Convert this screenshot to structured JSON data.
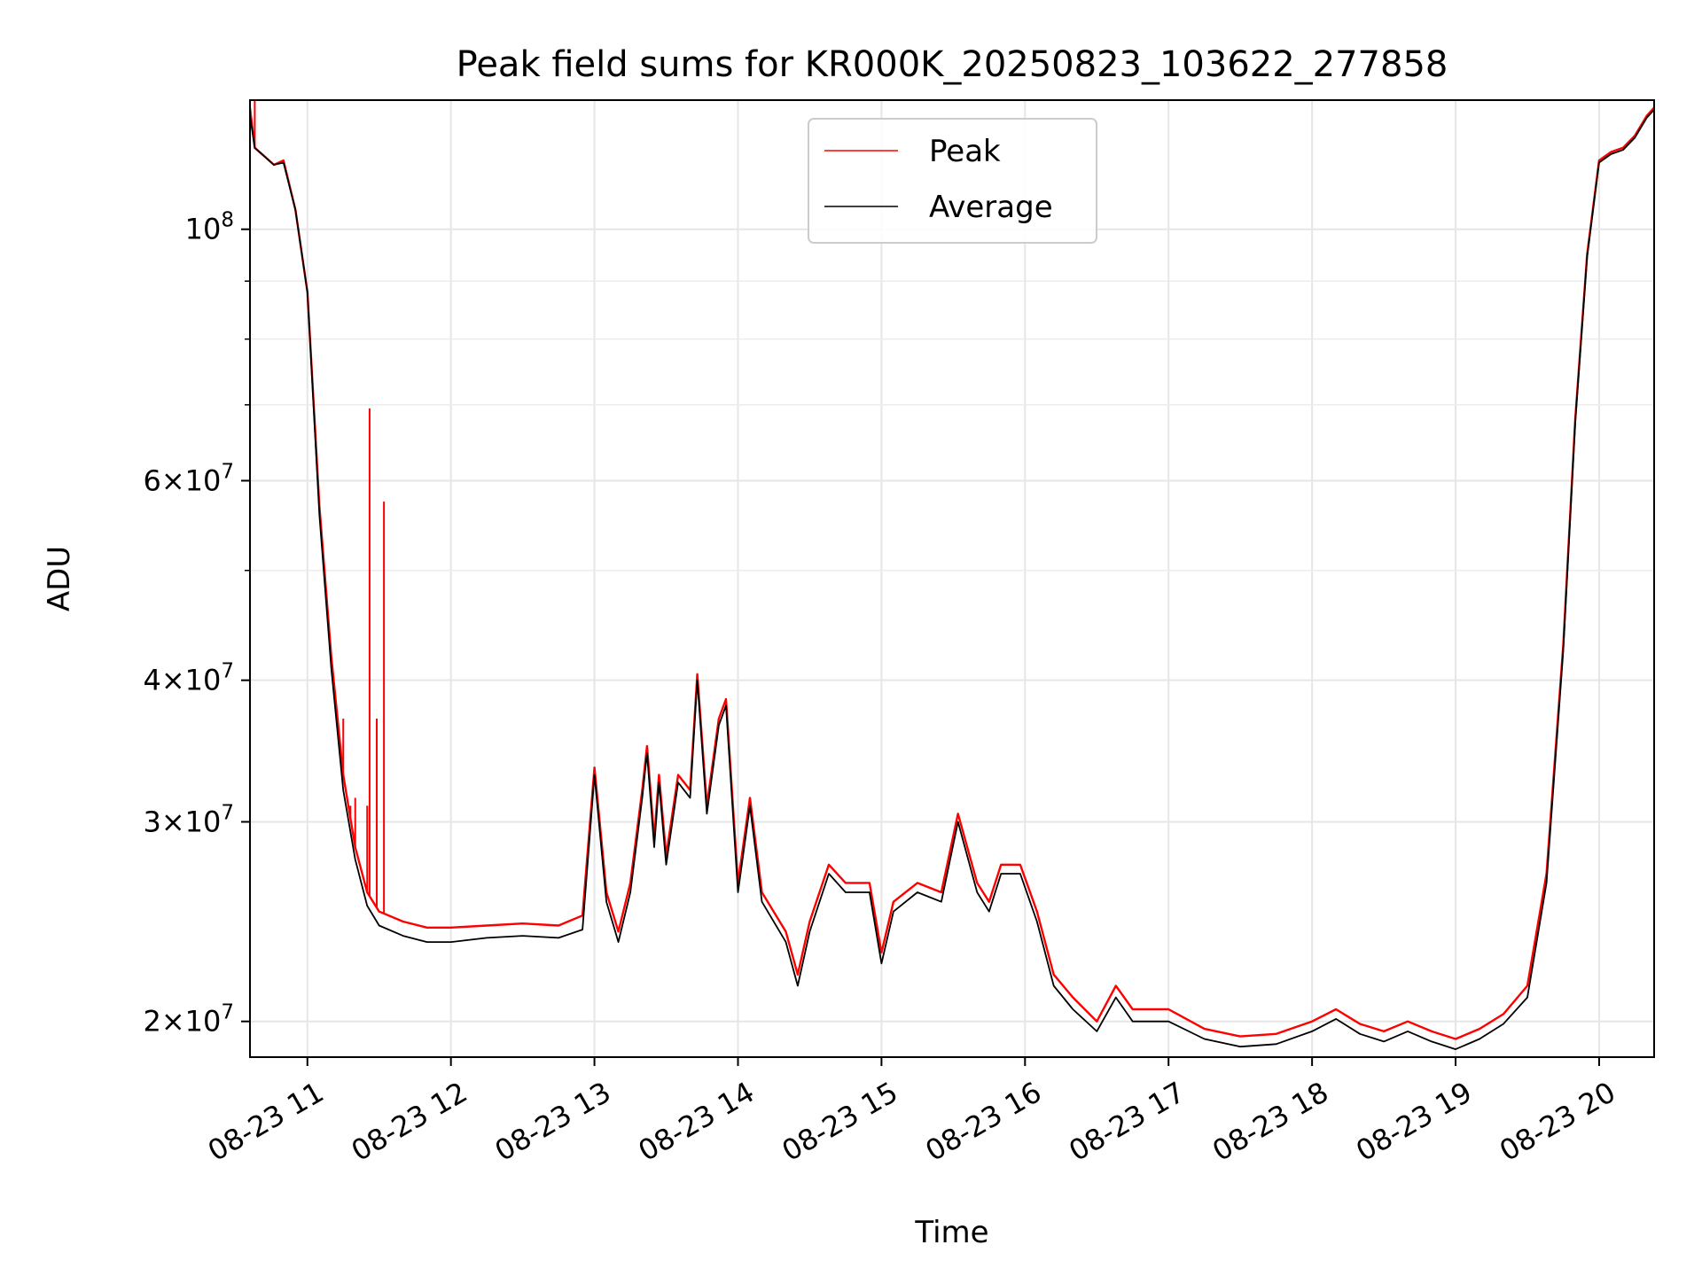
{
  "chart_data": {
    "type": "line",
    "title": "Peak field sums for KR000K_20250823_103622_277858",
    "xlabel": "Time",
    "ylabel": "ADU",
    "yscale": "log",
    "ylim": [
      18600000,
      130000000
    ],
    "xlim": [
      "2025-08-23 10:36",
      "2025-08-23 20:23"
    ],
    "x_ticks": [
      {
        "t": "2025-08-23 11:00",
        "label": "08-23 11"
      },
      {
        "t": "2025-08-23 12:00",
        "label": "08-23 12"
      },
      {
        "t": "2025-08-23 13:00",
        "label": "08-23 13"
      },
      {
        "t": "2025-08-23 14:00",
        "label": "08-23 14"
      },
      {
        "t": "2025-08-23 15:00",
        "label": "08-23 15"
      },
      {
        "t": "2025-08-23 16:00",
        "label": "08-23 16"
      },
      {
        "t": "2025-08-23 17:00",
        "label": "08-23 17"
      },
      {
        "t": "2025-08-23 18:00",
        "label": "08-23 18"
      },
      {
        "t": "2025-08-23 19:00",
        "label": "08-23 19"
      },
      {
        "t": "2025-08-23 20:00",
        "label": "08-23 20"
      }
    ],
    "y_major_ticks": [
      {
        "value": 20000000,
        "mantissa": "2",
        "exp": "7"
      },
      {
        "value": 30000000,
        "mantissa": "3",
        "exp": "7"
      },
      {
        "value": 40000000,
        "mantissa": "4",
        "exp": "7"
      },
      {
        "value": 60000000,
        "mantissa": "6",
        "exp": "7"
      },
      {
        "value": 100000000,
        "mantissa": "",
        "exp": "8"
      }
    ],
    "y_minor_ticks": [
      50000000,
      70000000,
      80000000,
      90000000
    ],
    "grid": true,
    "legend_position": "upper center",
    "series": [
      {
        "name": "Peak",
        "color": "#ff0000",
        "points": [
          [
            "2025-08-23 10:36",
            128000000
          ],
          [
            "2025-08-23 10:38",
            118000000
          ],
          [
            "2025-08-23 10:42",
            116000000
          ],
          [
            "2025-08-23 10:46",
            114000000
          ],
          [
            "2025-08-23 10:50",
            115000000
          ],
          [
            "2025-08-23 10:55",
            104000000
          ],
          [
            "2025-08-23 11:00",
            88000000
          ],
          [
            "2025-08-23 11:05",
            57000000
          ],
          [
            "2025-08-23 11:10",
            42000000
          ],
          [
            "2025-08-23 11:15",
            33000000
          ],
          [
            "2025-08-23 11:20",
            28500000
          ],
          [
            "2025-08-23 11:25",
            26000000
          ],
          [
            "2025-08-23 11:30",
            25000000
          ],
          [
            "2025-08-23 11:40",
            24500000
          ],
          [
            "2025-08-23 11:50",
            24200000
          ],
          [
            "2025-08-23 12:00",
            24200000
          ],
          [
            "2025-08-23 12:15",
            24300000
          ],
          [
            "2025-08-23 12:30",
            24400000
          ],
          [
            "2025-08-23 12:45",
            24300000
          ],
          [
            "2025-08-23 12:55",
            24800000
          ],
          [
            "2025-08-23 13:00",
            33500000
          ],
          [
            "2025-08-23 13:05",
            26000000
          ],
          [
            "2025-08-23 13:10",
            24000000
          ],
          [
            "2025-08-23 13:15",
            26500000
          ],
          [
            "2025-08-23 13:20",
            32000000
          ],
          [
            "2025-08-23 13:22",
            35000000
          ],
          [
            "2025-08-23 13:25",
            29000000
          ],
          [
            "2025-08-23 13:27",
            33000000
          ],
          [
            "2025-08-23 13:30",
            28000000
          ],
          [
            "2025-08-23 13:35",
            33000000
          ],
          [
            "2025-08-23 13:40",
            32000000
          ],
          [
            "2025-08-23 13:43",
            40500000
          ],
          [
            "2025-08-23 13:47",
            31000000
          ],
          [
            "2025-08-23 13:52",
            37000000
          ],
          [
            "2025-08-23 13:55",
            38500000
          ],
          [
            "2025-08-23 14:00",
            26500000
          ],
          [
            "2025-08-23 14:05",
            31500000
          ],
          [
            "2025-08-23 14:10",
            26000000
          ],
          [
            "2025-08-23 14:20",
            24000000
          ],
          [
            "2025-08-23 14:25",
            22000000
          ],
          [
            "2025-08-23 14:30",
            24500000
          ],
          [
            "2025-08-23 14:38",
            27500000
          ],
          [
            "2025-08-23 14:45",
            26500000
          ],
          [
            "2025-08-23 14:55",
            26500000
          ],
          [
            "2025-08-23 15:00",
            23000000
          ],
          [
            "2025-08-23 15:05",
            25500000
          ],
          [
            "2025-08-23 15:15",
            26500000
          ],
          [
            "2025-08-23 15:25",
            26000000
          ],
          [
            "2025-08-23 15:32",
            30500000
          ],
          [
            "2025-08-23 15:40",
            26500000
          ],
          [
            "2025-08-23 15:45",
            25500000
          ],
          [
            "2025-08-23 15:50",
            27500000
          ],
          [
            "2025-08-23 15:58",
            27500000
          ],
          [
            "2025-08-23 16:05",
            25000000
          ],
          [
            "2025-08-23 16:12",
            22000000
          ],
          [
            "2025-08-23 16:20",
            21000000
          ],
          [
            "2025-08-23 16:30",
            20000000
          ],
          [
            "2025-08-23 16:38",
            21500000
          ],
          [
            "2025-08-23 16:45",
            20500000
          ],
          [
            "2025-08-23 17:00",
            20500000
          ],
          [
            "2025-08-23 17:15",
            19700000
          ],
          [
            "2025-08-23 17:30",
            19400000
          ],
          [
            "2025-08-23 17:45",
            19500000
          ],
          [
            "2025-08-23 18:00",
            20000000
          ],
          [
            "2025-08-23 18:10",
            20500000
          ],
          [
            "2025-08-23 18:20",
            19900000
          ],
          [
            "2025-08-23 18:30",
            19600000
          ],
          [
            "2025-08-23 18:40",
            20000000
          ],
          [
            "2025-08-23 18:50",
            19600000
          ],
          [
            "2025-08-23 19:00",
            19300000
          ],
          [
            "2025-08-23 19:10",
            19700000
          ],
          [
            "2025-08-23 19:20",
            20300000
          ],
          [
            "2025-08-23 19:30",
            21500000
          ],
          [
            "2025-08-23 19:38",
            27000000
          ],
          [
            "2025-08-23 19:45",
            43000000
          ],
          [
            "2025-08-23 19:50",
            68000000
          ],
          [
            "2025-08-23 19:55",
            95000000
          ],
          [
            "2025-08-23 20:00",
            115000000
          ],
          [
            "2025-08-23 20:05",
            117000000
          ],
          [
            "2025-08-23 20:10",
            118000000
          ],
          [
            "2025-08-23 20:15",
            121000000
          ],
          [
            "2025-08-23 20:20",
            126000000
          ],
          [
            "2025-08-23 20:23",
            128000000
          ]
        ],
        "spikes": [
          [
            "2025-08-23 10:38",
            130000000
          ],
          [
            "2025-08-23 11:15",
            37000000
          ],
          [
            "2025-08-23 11:18",
            31000000
          ],
          [
            "2025-08-23 11:20",
            31500000
          ],
          [
            "2025-08-23 11:25",
            31000000
          ],
          [
            "2025-08-23 11:26",
            69500000
          ],
          [
            "2025-08-23 11:29",
            37000000
          ],
          [
            "2025-08-23 11:32",
            57500000
          ]
        ]
      },
      {
        "name": "Average",
        "color": "#000000",
        "points": [
          [
            "2025-08-23 10:36",
            126000000
          ],
          [
            "2025-08-23 10:38",
            118000000
          ],
          [
            "2025-08-23 10:42",
            116000000
          ],
          [
            "2025-08-23 10:46",
            114000000
          ],
          [
            "2025-08-23 10:50",
            114500000
          ],
          [
            "2025-08-23 10:55",
            104000000
          ],
          [
            "2025-08-23 11:00",
            88000000
          ],
          [
            "2025-08-23 11:05",
            56000000
          ],
          [
            "2025-08-23 11:10",
            41000000
          ],
          [
            "2025-08-23 11:15",
            32000000
          ],
          [
            "2025-08-23 11:20",
            27800000
          ],
          [
            "2025-08-23 11:25",
            25300000
          ],
          [
            "2025-08-23 11:30",
            24300000
          ],
          [
            "2025-08-23 11:40",
            23800000
          ],
          [
            "2025-08-23 11:50",
            23500000
          ],
          [
            "2025-08-23 12:00",
            23500000
          ],
          [
            "2025-08-23 12:15",
            23700000
          ],
          [
            "2025-08-23 12:30",
            23800000
          ],
          [
            "2025-08-23 12:45",
            23700000
          ],
          [
            "2025-08-23 12:55",
            24100000
          ],
          [
            "2025-08-23 13:00",
            33000000
          ],
          [
            "2025-08-23 13:05",
            25500000
          ],
          [
            "2025-08-23 13:10",
            23500000
          ],
          [
            "2025-08-23 13:15",
            26000000
          ],
          [
            "2025-08-23 13:20",
            31500000
          ],
          [
            "2025-08-23 13:22",
            34500000
          ],
          [
            "2025-08-23 13:25",
            28500000
          ],
          [
            "2025-08-23 13:27",
            32500000
          ],
          [
            "2025-08-23 13:30",
            27500000
          ],
          [
            "2025-08-23 13:35",
            32500000
          ],
          [
            "2025-08-23 13:40",
            31500000
          ],
          [
            "2025-08-23 13:43",
            40000000
          ],
          [
            "2025-08-23 13:47",
            30500000
          ],
          [
            "2025-08-23 13:52",
            36500000
          ],
          [
            "2025-08-23 13:55",
            38000000
          ],
          [
            "2025-08-23 14:00",
            26000000
          ],
          [
            "2025-08-23 14:05",
            31000000
          ],
          [
            "2025-08-23 14:10",
            25500000
          ],
          [
            "2025-08-23 14:20",
            23500000
          ],
          [
            "2025-08-23 14:25",
            21500000
          ],
          [
            "2025-08-23 14:30",
            24000000
          ],
          [
            "2025-08-23 14:38",
            27000000
          ],
          [
            "2025-08-23 14:45",
            26000000
          ],
          [
            "2025-08-23 14:55",
            26000000
          ],
          [
            "2025-08-23 15:00",
            22500000
          ],
          [
            "2025-08-23 15:05",
            25000000
          ],
          [
            "2025-08-23 15:15",
            26000000
          ],
          [
            "2025-08-23 15:25",
            25500000
          ],
          [
            "2025-08-23 15:32",
            30000000
          ],
          [
            "2025-08-23 15:40",
            26000000
          ],
          [
            "2025-08-23 15:45",
            25000000
          ],
          [
            "2025-08-23 15:50",
            27000000
          ],
          [
            "2025-08-23 15:58",
            27000000
          ],
          [
            "2025-08-23 16:05",
            24500000
          ],
          [
            "2025-08-23 16:12",
            21500000
          ],
          [
            "2025-08-23 16:20",
            20500000
          ],
          [
            "2025-08-23 16:30",
            19600000
          ],
          [
            "2025-08-23 16:38",
            21000000
          ],
          [
            "2025-08-23 16:45",
            20000000
          ],
          [
            "2025-08-23 17:00",
            20000000
          ],
          [
            "2025-08-23 17:15",
            19300000
          ],
          [
            "2025-08-23 17:30",
            19000000
          ],
          [
            "2025-08-23 17:45",
            19100000
          ],
          [
            "2025-08-23 18:00",
            19600000
          ],
          [
            "2025-08-23 18:10",
            20100000
          ],
          [
            "2025-08-23 18:20",
            19500000
          ],
          [
            "2025-08-23 18:30",
            19200000
          ],
          [
            "2025-08-23 18:40",
            19600000
          ],
          [
            "2025-08-23 18:50",
            19200000
          ],
          [
            "2025-08-23 19:00",
            18900000
          ],
          [
            "2025-08-23 19:10",
            19300000
          ],
          [
            "2025-08-23 19:20",
            19900000
          ],
          [
            "2025-08-23 19:30",
            21000000
          ],
          [
            "2025-08-23 19:38",
            26500000
          ],
          [
            "2025-08-23 19:45",
            42500000
          ],
          [
            "2025-08-23 19:50",
            67500000
          ],
          [
            "2025-08-23 19:55",
            94500000
          ],
          [
            "2025-08-23 20:00",
            114500000
          ],
          [
            "2025-08-23 20:05",
            116500000
          ],
          [
            "2025-08-23 20:10",
            117500000
          ],
          [
            "2025-08-23 20:15",
            120500000
          ],
          [
            "2025-08-23 20:20",
            125500000
          ],
          [
            "2025-08-23 20:23",
            127500000
          ]
        ]
      }
    ]
  }
}
